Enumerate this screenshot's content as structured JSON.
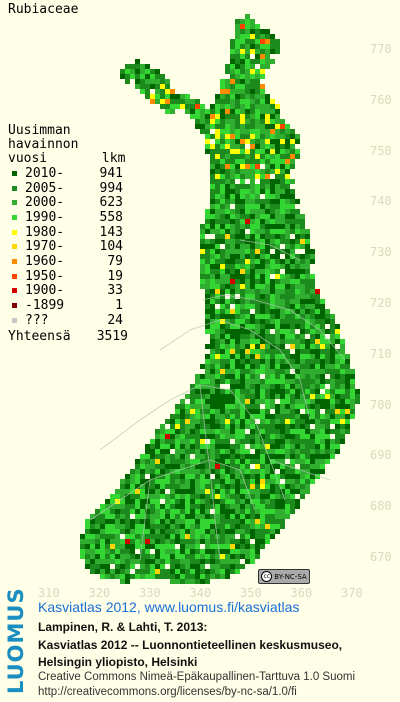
{
  "title": "Rubiaceae",
  "legend": {
    "header_lines": [
      "Uusimman",
      "havainnon",
      "vuosi       lkm"
    ],
    "entries": [
      {
        "label": "2010-",
        "count": "941",
        "color": "#006400"
      },
      {
        "label": "2005-",
        "count": "994",
        "color": "#1d8a1d"
      },
      {
        "label": "2000-",
        "count": "623",
        "color": "#2fae2f"
      },
      {
        "label": "1990-",
        "count": "558",
        "color": "#34d634"
      },
      {
        "label": "1980-",
        "count": "143",
        "color": "#ffff00"
      },
      {
        "label": "1970-",
        "count": "104",
        "color": "#ffd700"
      },
      {
        "label": "1960-",
        "count": "79",
        "color": "#ff8c00"
      },
      {
        "label": "1950-",
        "count": "19",
        "color": "#ff4500"
      },
      {
        "label": "1900-",
        "count": "33",
        "color": "#d40000"
      },
      {
        "label": "-1899",
        "count": "1",
        "color": "#800000"
      },
      {
        "label": "???",
        "count": "24",
        "color": "#c8c8c8"
      }
    ],
    "total_label": "Yhteensä",
    "total_count": "3519"
  },
  "y_ticks": [
    "770",
    "760",
    "750",
    "740",
    "730",
    "720",
    "710",
    "700",
    "690",
    "680",
    "670"
  ],
  "x_ticks": [
    "310",
    "320",
    "330",
    "340",
    "350",
    "360",
    "370"
  ],
  "license_badge": "BY-NC-SA",
  "logo": "LUOMUS",
  "link_text": "Kasviatlas 2012, www.luomus.fi/kasviatlas",
  "citation": [
    "Lampinen, R. & Lahti, T. 2013:",
    "Kasviatlas 2012 -- Luonnontieteellinen keskusmuseo,",
    "Helsingin yliopisto, Helsinki"
  ],
  "license_lines": [
    "Creative Commons Nimeä-Epäkaupallinen-Tarttuva 1.0 Suomi",
    "http://creativecommons.org/licenses/by-nc-sa/1.0/fi"
  ]
}
